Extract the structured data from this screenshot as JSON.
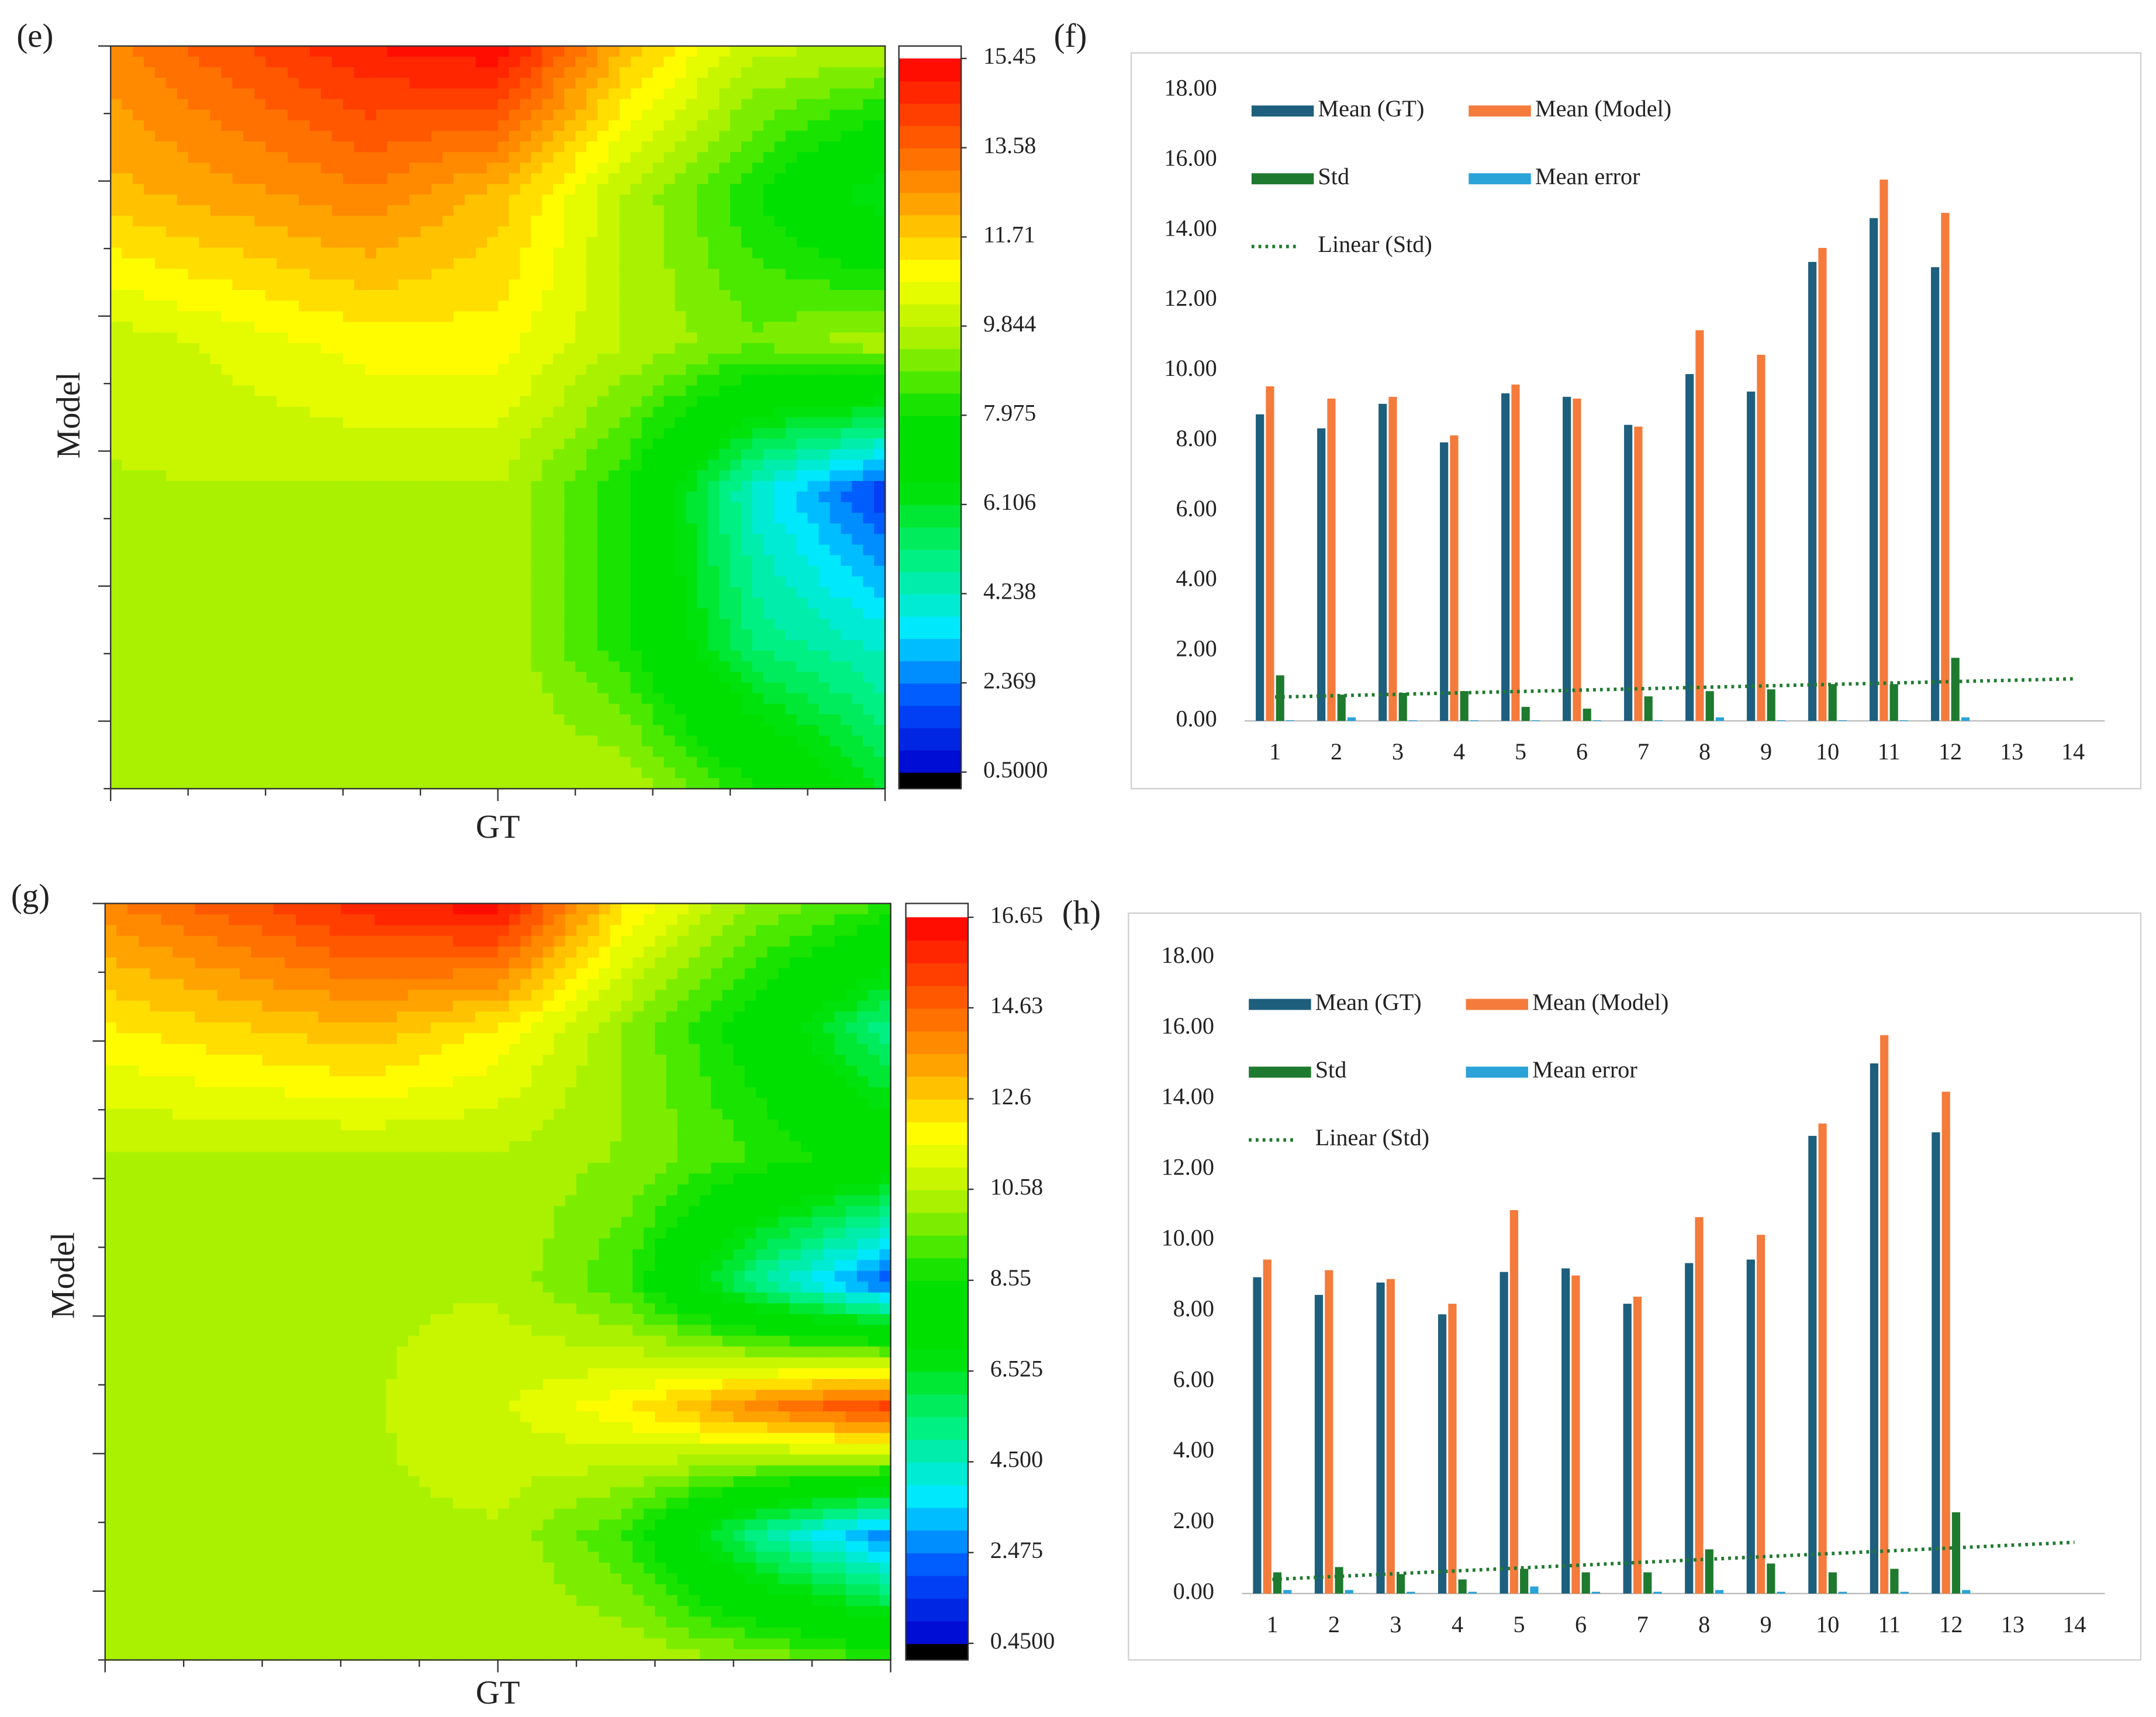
{
  "chart_data": [
    {
      "type": "contour",
      "panel_label": "(e)",
      "xlabel": "GT",
      "ylabel": "Model",
      "z": [
        [
          13,
          14,
          15,
          15.4,
          12,
          10,
          9.8
        ],
        [
          12,
          12.5,
          13,
          12,
          9.8,
          8,
          6
        ],
        [
          10,
          10.5,
          11,
          11,
          9.8,
          9,
          9.8
        ],
        [
          9.8,
          9.8,
          9.8,
          9.8,
          8,
          4,
          1.5
        ],
        [
          9.8,
          9.8,
          9.8,
          9.8,
          8,
          5,
          4
        ],
        [
          9.8,
          9.8,
          9.8,
          9.8,
          9.8,
          8,
          6
        ]
      ],
      "clim": [
        0.5,
        15.45
      ],
      "colorbar_ticks": [
        15.45,
        13.58,
        11.71,
        9.844,
        7.975,
        6.106,
        4.238,
        2.369,
        {
          "value": 0.5,
          "label": "0.5000"
        }
      ],
      "colormap": [
        "#0000cc",
        "#0050ff",
        "#00e8ff",
        "#00f080",
        "#00e000",
        "#00e000",
        "#a0f000",
        "#ffff00",
        "#ffa000",
        "#ff5000",
        "#ff0000"
      ],
      "above_color": "#ffffff",
      "below_color": "#000000"
    },
    {
      "type": "bar",
      "panel_label": "(f)",
      "categories": [
        "1",
        "2",
        "3",
        "4",
        "5",
        "6",
        "7",
        "8",
        "9",
        "10",
        "11",
        "12",
        "13",
        "14"
      ],
      "series": [
        {
          "name": "Mean (GT)",
          "color": "#1d5f7d",
          "values": [
            8.75,
            8.35,
            9.05,
            7.95,
            9.35,
            9.25,
            8.45,
            9.9,
            9.4,
            13.1,
            14.35,
            12.95,
            null,
            null
          ]
        },
        {
          "name": "Mean (Model)",
          "color": "#f47b3c",
          "values": [
            9.55,
            9.2,
            9.25,
            8.15,
            9.6,
            9.2,
            8.4,
            11.15,
            10.45,
            13.5,
            15.45,
            14.5,
            null,
            null
          ]
        },
        {
          "name": "Std",
          "color": "#1e7a2e",
          "values": [
            1.3,
            0.75,
            0.8,
            0.85,
            0.4,
            0.35,
            0.7,
            0.85,
            0.9,
            1.05,
            1.05,
            1.8,
            null,
            null
          ]
        },
        {
          "name": "Mean error",
          "color": "#2aa3d8",
          "values": [
            0.02,
            0.1,
            0.02,
            0.02,
            0.02,
            0.02,
            0.02,
            0.1,
            0.02,
            0.02,
            0.02,
            0.1,
            null,
            null
          ]
        }
      ],
      "trendline": {
        "name": "Linear (Std)",
        "color": "#1e7a2e",
        "x": [
          1,
          14
        ],
        "values": [
          0.68,
          1.2
        ]
      },
      "ylim": [
        0,
        18
      ],
      "yticks": [
        {
          "value": 0,
          "label": "0.00"
        },
        {
          "value": 2,
          "label": "2.00"
        },
        {
          "value": 4,
          "label": "4.00"
        },
        {
          "value": 6,
          "label": "6.00"
        },
        {
          "value": 8,
          "label": "8.00"
        },
        {
          "value": 10,
          "label": "10.00"
        },
        {
          "value": 12,
          "label": "12.00"
        },
        {
          "value": 14,
          "label": "14.00"
        },
        {
          "value": 16,
          "label": "16.00"
        },
        {
          "value": 18,
          "label": "18.00"
        }
      ]
    },
    {
      "type": "contour",
      "panel_label": "(g)",
      "xlabel": "GT",
      "ylabel": "Model",
      "z": [
        [
          14,
          15,
          16,
          16.5,
          12,
          10,
          9
        ],
        [
          12,
          12.5,
          13,
          12,
          10,
          8,
          5
        ],
        [
          10.5,
          10.5,
          10.5,
          10.5,
          10,
          9,
          8
        ],
        [
          10.5,
          10.5,
          10.5,
          10.5,
          9,
          5,
          2
        ],
        [
          10.5,
          10.5,
          10.5,
          11,
          12,
          14,
          15.5
        ],
        [
          10.5,
          10.5,
          10.5,
          10.5,
          9,
          5,
          2.5
        ],
        [
          10.5,
          10.5,
          10.5,
          10.5,
          10.5,
          10,
          9
        ]
      ],
      "clim": [
        0.45,
        16.65
      ],
      "colorbar_ticks": [
        16.65,
        14.63,
        12.6,
        10.58,
        8.55,
        6.525,
        {
          "value": 4.5,
          "label": "4.500"
        },
        2.475,
        {
          "value": 0.45,
          "label": "0.4500"
        }
      ],
      "colormap": [
        "#0000cc",
        "#0050ff",
        "#00e8ff",
        "#00f080",
        "#00e000",
        "#00e000",
        "#a0f000",
        "#ffff00",
        "#ffa000",
        "#ff5000",
        "#ff0000"
      ],
      "above_color": "#ffffff",
      "below_color": "#000000"
    },
    {
      "type": "bar",
      "panel_label": "(h)",
      "categories": [
        "1",
        "2",
        "3",
        "4",
        "5",
        "6",
        "7",
        "8",
        "9",
        "10",
        "11",
        "12",
        "13",
        "14"
      ],
      "series": [
        {
          "name": "Mean (GT)",
          "color": "#1d5f7d",
          "values": [
            8.95,
            8.45,
            8.8,
            7.9,
            9.1,
            9.2,
            8.2,
            9.35,
            9.45,
            12.95,
            15.0,
            13.05,
            null,
            null
          ]
        },
        {
          "name": "Mean (Model)",
          "color": "#f47b3c",
          "values": [
            9.45,
            9.15,
            8.9,
            8.2,
            10.85,
            9.0,
            8.4,
            10.65,
            10.15,
            13.3,
            15.8,
            14.2,
            null,
            null
          ]
        },
        {
          "name": "Std",
          "color": "#1e7a2e",
          "values": [
            0.6,
            0.75,
            0.55,
            0.4,
            0.7,
            0.6,
            0.6,
            1.25,
            0.85,
            0.6,
            0.7,
            2.3,
            null,
            null
          ]
        },
        {
          "name": "Mean error",
          "color": "#2aa3d8",
          "values": [
            0.1,
            0.1,
            0.05,
            0.05,
            0.2,
            0.05,
            0.05,
            0.1,
            0.05,
            0.05,
            0.05,
            0.1,
            null,
            null
          ]
        }
      ],
      "trendline": {
        "name": "Linear (Std)",
        "color": "#1e7a2e",
        "x": [
          1,
          14
        ],
        "values": [
          0.4,
          1.45
        ]
      },
      "ylim": [
        0,
        18
      ],
      "yticks": [
        {
          "value": 0,
          "label": "0.00"
        },
        {
          "value": 2,
          "label": "2.00"
        },
        {
          "value": 4,
          "label": "4.00"
        },
        {
          "value": 6,
          "label": "6.00"
        },
        {
          "value": 8,
          "label": "8.00"
        },
        {
          "value": 10,
          "label": "10.00"
        },
        {
          "value": 12,
          "label": "12.00"
        },
        {
          "value": 14,
          "label": "14.00"
        },
        {
          "value": 16,
          "label": "16.00"
        },
        {
          "value": 18,
          "label": "18.00"
        }
      ]
    }
  ]
}
